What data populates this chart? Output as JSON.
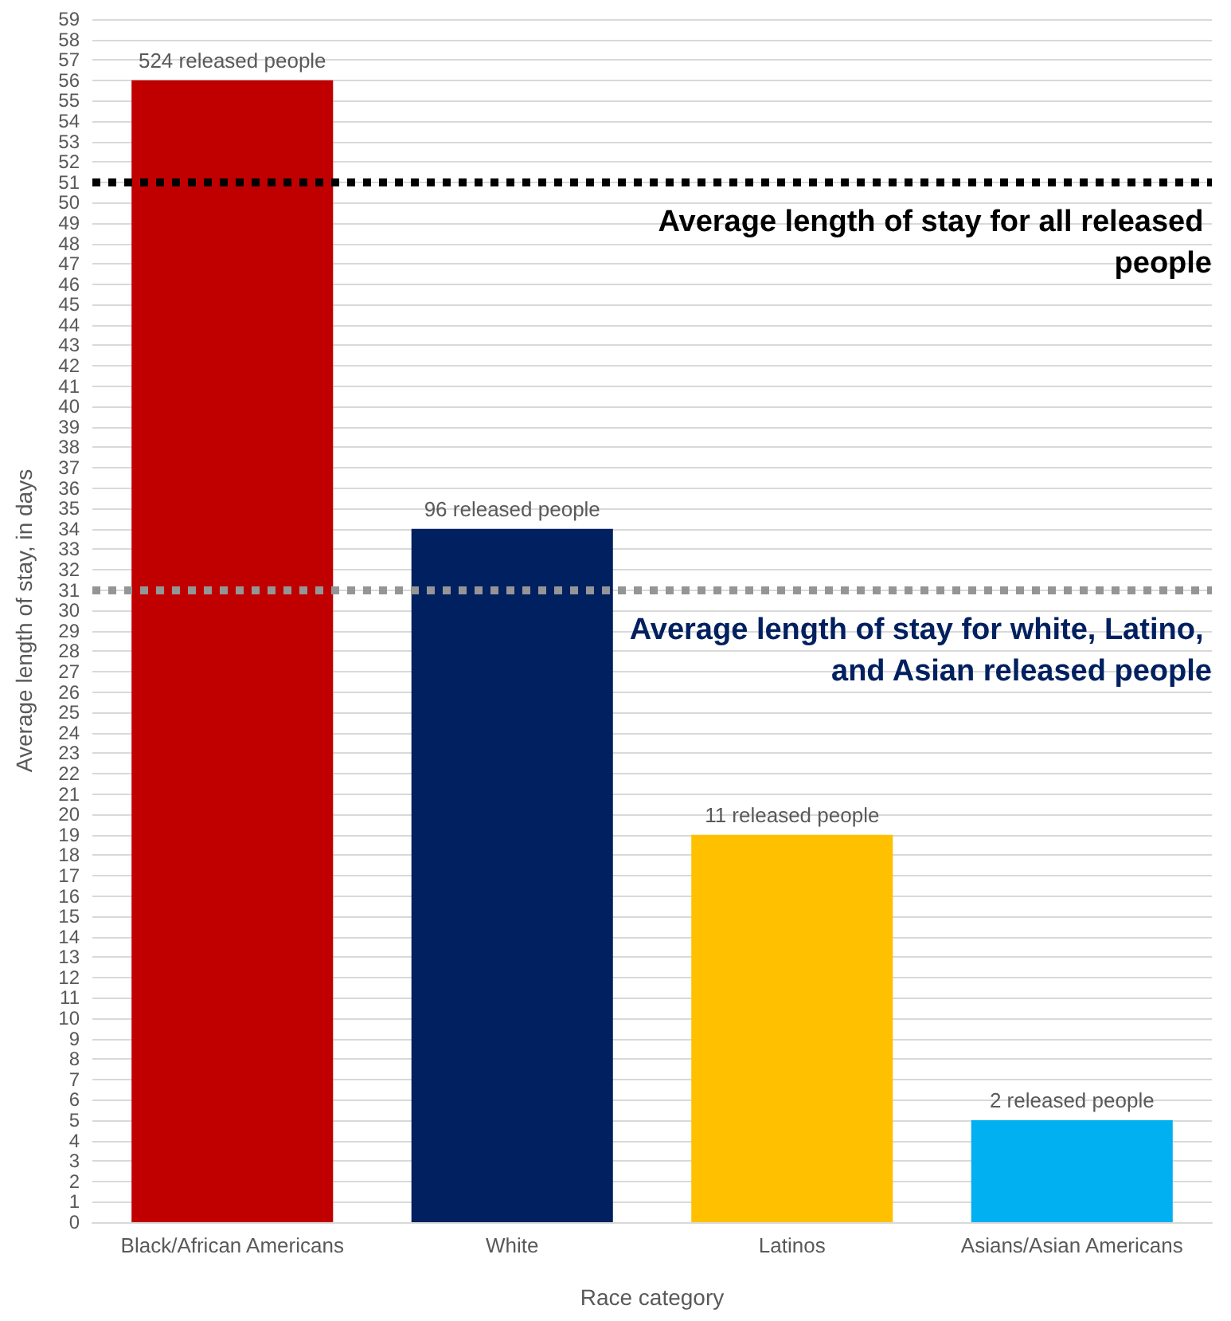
{
  "chart_data": {
    "type": "bar",
    "xlabel": "Race category",
    "ylabel": "Average length of stay, in days",
    "categories": [
      "Black/African Americans",
      "White",
      "Latinos",
      "Asians/Asian Americans"
    ],
    "values": [
      56,
      34,
      19,
      5
    ],
    "colors": [
      "#c00000",
      "#002060",
      "#ffc000",
      "#00b0f0"
    ],
    "annotations": [
      {
        "text": "524 released people",
        "x": "Black/African Americans",
        "y": 56
      },
      {
        "text": "96 released people",
        "x": "White",
        "y": 34
      },
      {
        "text": "11 released people",
        "x": "Latinos",
        "y": 19
      },
      {
        "text": "2 released people",
        "x": "Asians/Asian Americans",
        "y": 5
      }
    ],
    "ylim": [
      0,
      59
    ],
    "yticks": [
      0,
      1,
      2,
      3,
      4,
      5,
      6,
      7,
      8,
      9,
      10,
      11,
      12,
      13,
      14,
      15,
      16,
      17,
      18,
      19,
      20,
      21,
      22,
      23,
      24,
      25,
      26,
      27,
      28,
      29,
      30,
      31,
      32,
      33,
      34,
      35,
      36,
      37,
      38,
      39,
      40,
      41,
      42,
      43,
      44,
      45,
      46,
      47,
      48,
      49,
      50,
      51,
      52,
      53,
      54,
      55,
      56,
      57,
      58,
      59
    ],
    "grid": "y",
    "ref_lines": [
      {
        "axis": "y",
        "value": 51,
        "label": "Average length of stay for all released people",
        "color": "#000000",
        "line_style": "dotted"
      },
      {
        "axis": "y",
        "value": 31,
        "label": "Average length of stay for white, Latino, and Asian released people",
        "color": "#959595",
        "line_style": "dotted"
      }
    ]
  }
}
